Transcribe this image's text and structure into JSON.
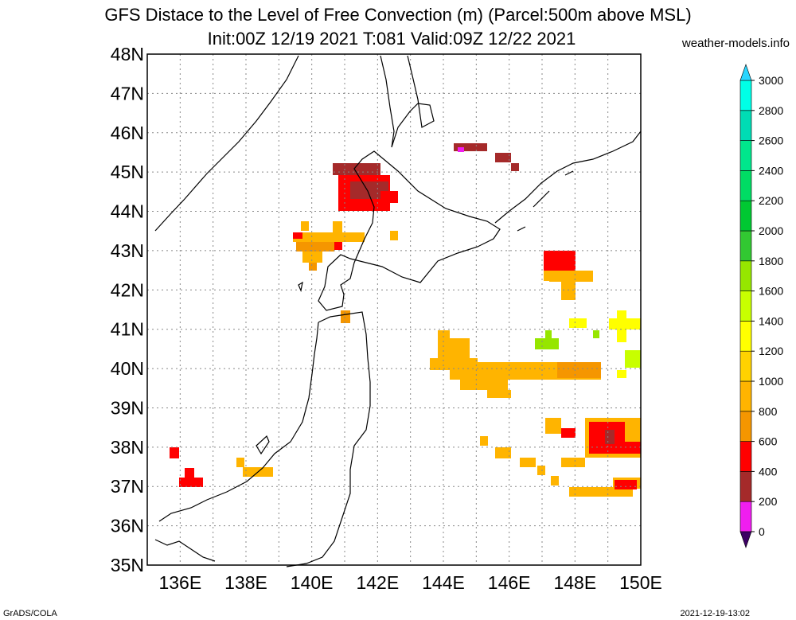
{
  "title_line1": "GFS Distace to the Level of Free Convection (m) (Parcel:500m above MSL)",
  "title_line2": "Init:00Z 12/19 2021 T:081 Valid:09Z 12/22 2021",
  "credit": "weather-models.info",
  "footer_left": "GrADS/COLA",
  "footer_right": "2021-12-19-13:02",
  "map": {
    "lat_labels": [
      "48N",
      "47N",
      "46N",
      "45N",
      "44N",
      "43N",
      "42N",
      "41N",
      "40N",
      "39N",
      "38N",
      "37N",
      "36N",
      "35N"
    ],
    "lon_labels": [
      "136E",
      "138E",
      "140E",
      "142E",
      "144E",
      "146E",
      "148E",
      "150E"
    ],
    "extent": {
      "lon_min": 135,
      "lon_max": 150,
      "lat_min": 35,
      "lat_max": 48
    },
    "grid": "dotted"
  },
  "colorbar": {
    "levels": [
      "0",
      "200",
      "400",
      "600",
      "800",
      "1000",
      "1200",
      "1400",
      "1600",
      "1800",
      "2000",
      "2200",
      "2400",
      "2600",
      "2800",
      "3000"
    ],
    "colors": [
      "#3c1a8a",
      "#f01ef0",
      "#a52a2a",
      "#ff0000",
      "#f59600",
      "#ffb400",
      "#ffd200",
      "#ffff00",
      "#c8ff00",
      "#96e600",
      "#32c832",
      "#00c832",
      "#00dc64",
      "#00e68c",
      "#00dcb4",
      "#00ffe6"
    ],
    "under_color": "#3c0064",
    "over_color": "#2ad6ff"
  }
}
